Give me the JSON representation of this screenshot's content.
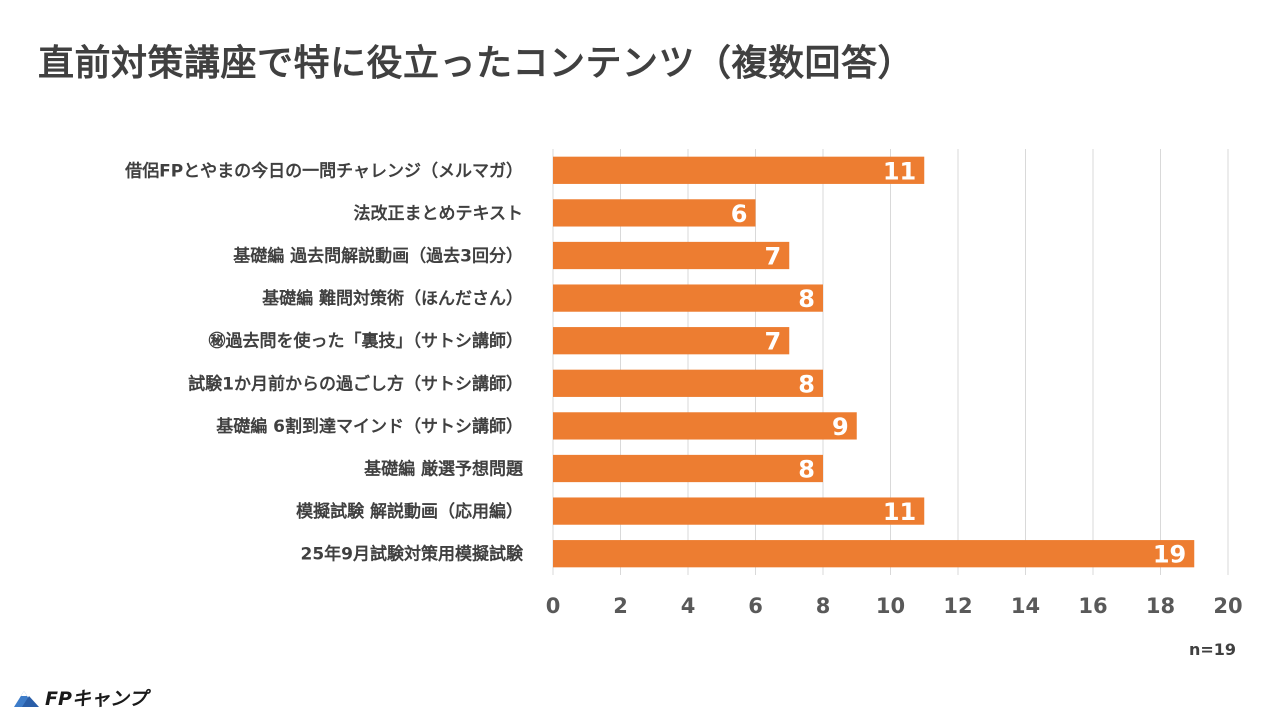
{
  "title": "直前対策講座で特に役立ったコンテンツ（複数回答）",
  "sample_size": "n=19",
  "logo": {
    "text": "FPキャンプ"
  },
  "colors": {
    "bar": "#ED7D31",
    "grid": "#D9D9D9",
    "text": "#404040"
  },
  "chart_data": {
    "type": "bar",
    "orientation": "horizontal",
    "title": "直前対策講座で特に役立ったコンテンツ（複数回答）",
    "categories": [
      "借侶FPとやまの今日の一問チャレンジ（メルマガ）",
      "法改正まとめテキスト",
      "基礎編 過去問解説動画（過去3回分）",
      "基礎編 難問対策術（ほんださん）",
      "㊙過去問を使った「裏技」（サトシ講師）",
      "試験1か月前からの過ごし方（サトシ講師）",
      "基礎編 6割到達マインド（サトシ講師）",
      "基礎編 厳選予想問題",
      "模擬試験 解説動画（応用編）",
      "25年9月試験対策用模擬試験"
    ],
    "values": [
      11,
      6,
      7,
      8,
      7,
      8,
      9,
      8,
      11,
      19
    ],
    "xlim": [
      0,
      20
    ],
    "ticks": [
      0,
      2,
      4,
      6,
      8,
      10,
      12,
      14,
      16,
      18,
      20
    ],
    "tick_labels": [
      "0",
      "2",
      "4",
      "6",
      "8",
      "10",
      "12",
      "14",
      "16",
      "18",
      "20"
    ],
    "grid": true,
    "legend": "none",
    "xlabel": "",
    "ylabel": ""
  }
}
